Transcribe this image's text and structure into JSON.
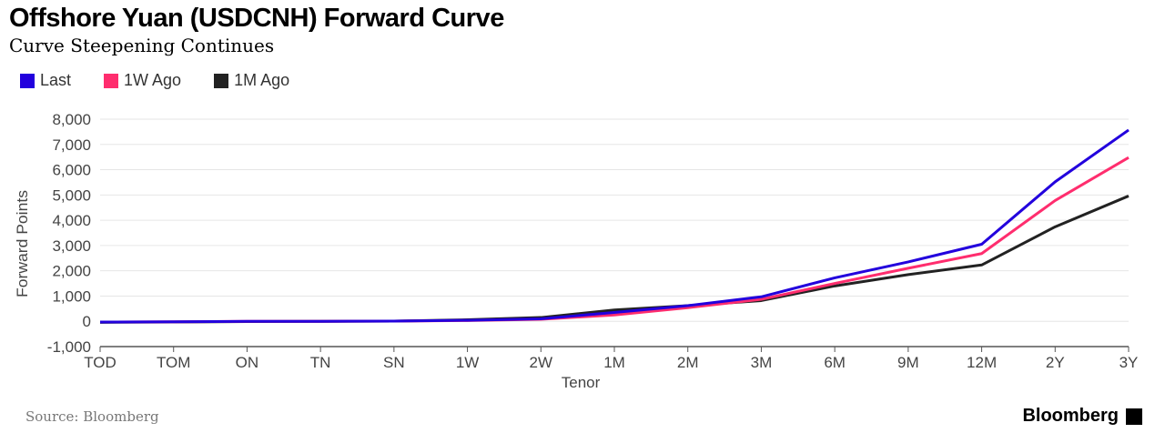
{
  "chart_data": {
    "type": "line",
    "title": "Offshore Yuan (USDCNH) Forward Curve",
    "subtitle": "Curve Steepening Continues",
    "xlabel": "Tenor",
    "ylabel": "Forward Points",
    "ylim": [
      -1000,
      8000
    ],
    "yticks": [
      -1000,
      0,
      1000,
      2000,
      3000,
      4000,
      5000,
      6000,
      7000,
      8000
    ],
    "ytick_labels": [
      "-1,000",
      "0",
      "1,000",
      "2,000",
      "3,000",
      "4,000",
      "5,000",
      "6,000",
      "7,000",
      "8,000"
    ],
    "grid": true,
    "legend_position": "top-left",
    "categories": [
      "TOD",
      "TOM",
      "ON",
      "TN",
      "SN",
      "1W",
      "2W",
      "1M",
      "2M",
      "3M",
      "6M",
      "9M",
      "12M",
      "2Y",
      "3Y"
    ],
    "series": [
      {
        "name": "Last",
        "color": "#2200dd",
        "values": [
          -30,
          -20,
          0,
          0,
          10,
          40,
          100,
          350,
          620,
          970,
          1720,
          2350,
          3050,
          5520,
          7570
        ]
      },
      {
        "name": "1W Ago",
        "color": "#ff2d6e",
        "values": [
          -30,
          -20,
          0,
          0,
          10,
          30,
          80,
          250,
          540,
          870,
          1500,
          2100,
          2680,
          4780,
          6480
        ]
      },
      {
        "name": "1M Ago",
        "color": "#222222",
        "values": [
          -40,
          -30,
          -10,
          0,
          10,
          60,
          150,
          450,
          620,
          820,
          1400,
          1850,
          2230,
          3740,
          4960
        ]
      }
    ]
  },
  "footer": {
    "source": "Source: Bloomberg",
    "brand": "Bloomberg"
  }
}
